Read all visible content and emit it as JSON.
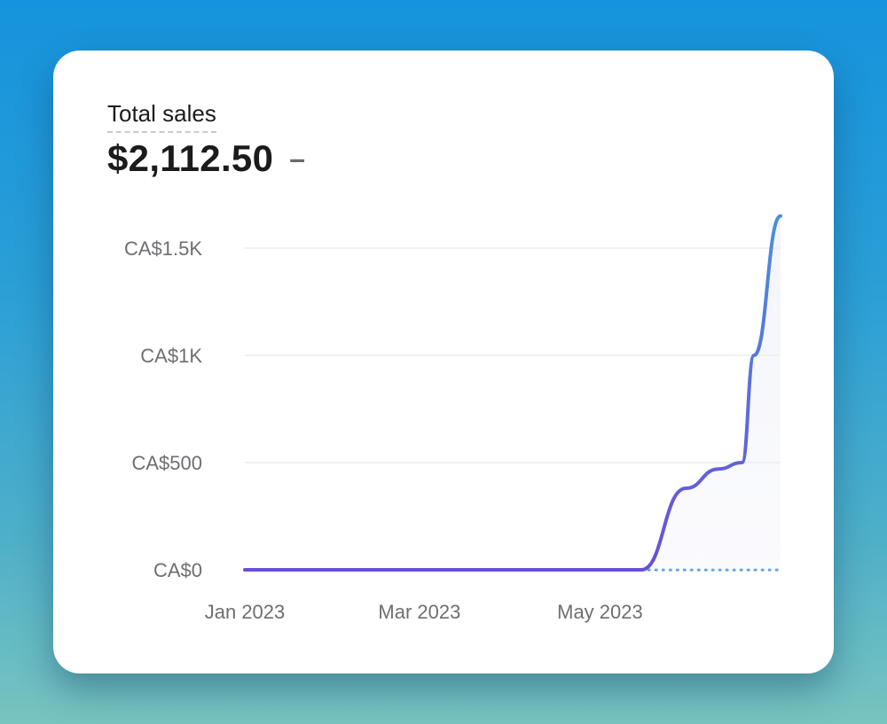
{
  "card": {
    "title": "Total sales",
    "value": "$2,112.50",
    "change_indicator": "–"
  },
  "colors": {
    "line_start": "#6a4fd8",
    "line_end": "#4a90d9",
    "comparison": "#4a90d9",
    "grid": "#ececf0",
    "tick_text": "#6e6e73"
  },
  "chart_data": {
    "type": "line",
    "title": "Total sales",
    "xlabel": "",
    "ylabel": "",
    "ylim": [
      0,
      1500
    ],
    "yticks": [
      {
        "value": 0,
        "label": "CA$0"
      },
      {
        "value": 500,
        "label": "CA$500"
      },
      {
        "value": 1000,
        "label": "CA$1K"
      },
      {
        "value": 1500,
        "label": "CA$1.5K"
      }
    ],
    "xticks": [
      {
        "value": "2023-01-01",
        "label": "Jan 2023"
      },
      {
        "value": "2023-03-01",
        "label": "Mar 2023"
      },
      {
        "value": "2023-05-01",
        "label": "May 2023"
      }
    ],
    "xlim": [
      "2023-01-01",
      "2023-07-01"
    ],
    "grid": true,
    "series": [
      {
        "style": "solid",
        "points": [
          {
            "x": "2023-01-01",
            "y": 0
          },
          {
            "x": "2023-05-15",
            "y": 0
          },
          {
            "x": "2023-05-30",
            "y": 380
          },
          {
            "x": "2023-06-10",
            "y": 470
          },
          {
            "x": "2023-06-18",
            "y": 500
          },
          {
            "x": "2023-06-22",
            "y": 1000
          },
          {
            "x": "2023-07-01",
            "y": 1650
          }
        ]
      },
      {
        "style": "dotted",
        "points": [
          {
            "x": "2023-05-15",
            "y": 0
          },
          {
            "x": "2023-07-01",
            "y": 0
          }
        ]
      }
    ]
  }
}
